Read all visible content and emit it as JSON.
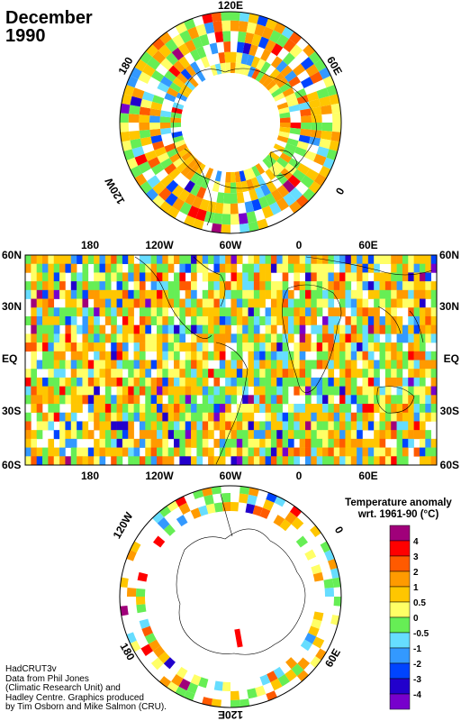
{
  "header": {
    "month": "December",
    "year": "1990"
  },
  "north_polar": {
    "labels": [
      "120E",
      "60E",
      "0",
      "120W",
      "180"
    ]
  },
  "world_map": {
    "lon_labels_top": [
      "180",
      "120W",
      "60W",
      "0",
      "60E"
    ],
    "lon_labels_bottom": [
      "180",
      "120W",
      "60W",
      "0",
      "60E"
    ],
    "lat_labels_left": [
      "60N",
      "30N",
      "EQ",
      "30S",
      "60S"
    ],
    "lat_labels_right": [
      "60N",
      "30N",
      "EQ",
      "30S",
      "60S"
    ]
  },
  "south_polar": {
    "labels": [
      "120W",
      "0",
      "180",
      "60E",
      "120E"
    ]
  },
  "legend": {
    "title_line1": "Temperature anomaly",
    "title_line2": "wrt. 1961-90  (°C)",
    "ticks": [
      "4",
      "3",
      "2",
      "1",
      "0.5",
      "0",
      "-0.5",
      "-1",
      "-2",
      "-3",
      "-4"
    ],
    "colors": [
      "#a0007a",
      "#ff0000",
      "#ff5a00",
      "#ff9a00",
      "#ffc600",
      "#ffff66",
      "#66ee55",
      "#66ddff",
      "#3399ff",
      "#0044ff",
      "#2200cc",
      "#7700cc"
    ]
  },
  "credit": {
    "lines": [
      "HadCRUT3v",
      "Data from Phil Jones",
      "(Climatic Research Unit) and",
      "Hadley Centre.  Graphics produced",
      "by Tim Osborn and Mike Salmon (CRU)."
    ]
  },
  "chart_data": {
    "type": "heatmap",
    "variable": "Temperature anomaly",
    "reference_period": "1961-90",
    "units": "°C",
    "color_scale_bins": [
      -4,
      -3,
      -2,
      -1,
      -0.5,
      0,
      0.5,
      1,
      2,
      3,
      4
    ],
    "lon_range": [
      -180,
      180
    ],
    "lat_range": [
      -60,
      60
    ]
  }
}
